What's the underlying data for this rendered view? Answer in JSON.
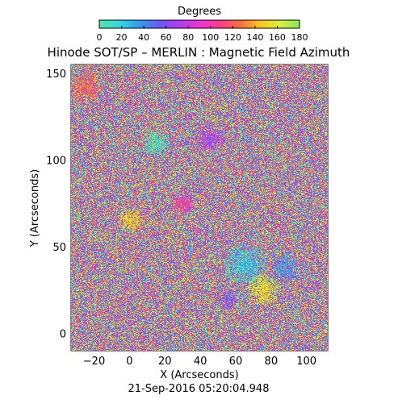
{
  "chart_data": {
    "type": "heatmap",
    "title": "Hinode SOT/SP – MERLIN : Magnetic Field Azimuth",
    "xlabel": "X (Arcseconds)",
    "ylabel": "Y (Arcseconds)",
    "xlim": [
      -33,
      112
    ],
    "ylim": [
      -10,
      155
    ],
    "x_ticks": [
      -20,
      0,
      20,
      40,
      60,
      80,
      100
    ],
    "x_tick_labels": [
      "−20",
      "0",
      "20",
      "40",
      "60",
      "80",
      "100"
    ],
    "y_ticks": [
      0,
      50,
      100,
      150
    ],
    "y_tick_labels": [
      "0",
      "50",
      "100",
      "150"
    ],
    "colorbar": {
      "title": "Degrees",
      "range": [
        0,
        180
      ],
      "ticks": [
        0,
        20,
        40,
        60,
        80,
        100,
        120,
        140,
        160,
        180
      ],
      "tick_labels": [
        "0",
        "20",
        "40",
        "60",
        "80",
        "100",
        "120",
        "140",
        "160",
        "180"
      ],
      "colors": [
        "#4fe8a0",
        "#33d8e8",
        "#2f9cf2",
        "#6a5af5",
        "#b53af2",
        "#f032d6",
        "#ff3c8c",
        "#ff6a3a",
        "#ffc21a",
        "#d8f23a",
        "#86ea5a"
      ]
    },
    "timestamp": "21-Sep-2016 05:20:04.948"
  }
}
